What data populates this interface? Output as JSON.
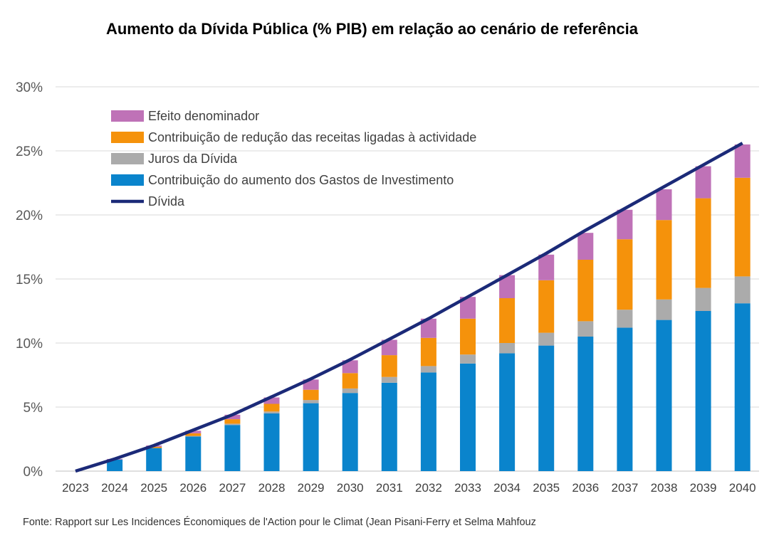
{
  "chart_data": {
    "type": "bar",
    "stacked": true,
    "title": "Aumento da Dívida Pública (% PIB) em relação ao cenário de referência",
    "xlabel": "",
    "ylabel": "",
    "ylim": [
      0,
      30
    ],
    "yticks": [
      "0%",
      "5%",
      "10%",
      "15%",
      "20%",
      "25%",
      "30%"
    ],
    "grid": true,
    "legend_position": "top-left",
    "categories": [
      "2023",
      "2024",
      "2025",
      "2026",
      "2027",
      "2028",
      "2029",
      "2030",
      "2031",
      "2032",
      "2033",
      "2034",
      "2035",
      "2036",
      "2037",
      "2038",
      "2039",
      "2040"
    ],
    "series": [
      {
        "name": "Contribuição do aumento dos Gastos de Investimento",
        "color": "#0A84CC",
        "values": [
          0,
          0.9,
          1.8,
          2.7,
          3.6,
          4.5,
          5.3,
          6.1,
          6.9,
          7.7,
          8.4,
          9.2,
          9.8,
          10.5,
          11.2,
          11.8,
          12.5,
          13.1
        ]
      },
      {
        "name": "Juros da Dívida",
        "color": "#ABABAB",
        "values": [
          0,
          0,
          0,
          0.05,
          0.1,
          0.15,
          0.25,
          0.35,
          0.45,
          0.5,
          0.7,
          0.8,
          1.0,
          1.2,
          1.4,
          1.6,
          1.8,
          2.1
        ]
      },
      {
        "name": "Contribuição de redução das receitas ligadas à actividade",
        "color": "#F5920B",
        "values": [
          0,
          0,
          0.1,
          0.2,
          0.35,
          0.6,
          0.8,
          1.2,
          1.7,
          2.2,
          2.8,
          3.5,
          4.1,
          4.8,
          5.5,
          6.2,
          7.0,
          7.7
        ]
      },
      {
        "name": "Efeito denominador",
        "color": "#BF72B7",
        "values": [
          0,
          0.05,
          0.1,
          0.2,
          0.35,
          0.5,
          0.8,
          1.0,
          1.2,
          1.5,
          1.7,
          1.8,
          2.0,
          2.1,
          2.3,
          2.4,
          2.5,
          2.6
        ]
      }
    ],
    "line": {
      "name": "Dívida",
      "color": "#1B2A78",
      "values": [
        0,
        0.95,
        2.0,
        3.2,
        4.4,
        5.8,
        7.2,
        8.7,
        10.3,
        11.9,
        13.6,
        15.3,
        17.0,
        18.8,
        20.5,
        22.2,
        23.9,
        25.6
      ]
    },
    "legend_order": [
      "Efeito denominador",
      "Contribuição de redução das receitas ligadas à actividade",
      "Juros da Dívida",
      "Contribuição do aumento dos Gastos de Investimento",
      "Dívida"
    ]
  },
  "source": "Fonte: Rapport sur Les Incidences Économiques de l'Action pour le Climat (Jean Pisani-Ferry et Selma Mahfouz"
}
